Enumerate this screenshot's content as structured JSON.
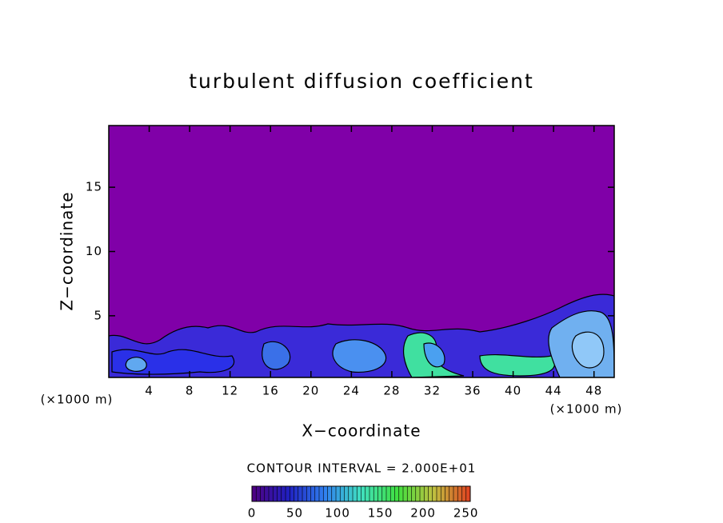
{
  "chart_data": {
    "type": "contour",
    "title": "turbulent diffusion coefficient",
    "xlabel": "X−coordinate",
    "ylabel": "Z−coordinate",
    "xunit": "(×1000 m)",
    "yunit": "(×1000 m)",
    "xlim": [
      0,
      50
    ],
    "xticks": [
      4,
      8,
      12,
      16,
      20,
      24,
      28,
      32,
      36,
      40,
      44,
      48
    ],
    "ylim": [
      0.2,
      19.8
    ],
    "yticks": [
      5,
      10,
      15
    ],
    "background_color": "#8000a8",
    "colorbar": {
      "label": "CONTOUR INTERVAL = 2.000E+01",
      "lim": [
        0,
        255
      ],
      "ticks": [
        0,
        50,
        100,
        150,
        200,
        250
      ],
      "colors": [
        "#500080",
        "#2020c0",
        "#3080f0",
        "#40e0c0",
        "#40e040",
        "#c0c040",
        "#e04020"
      ]
    }
  }
}
